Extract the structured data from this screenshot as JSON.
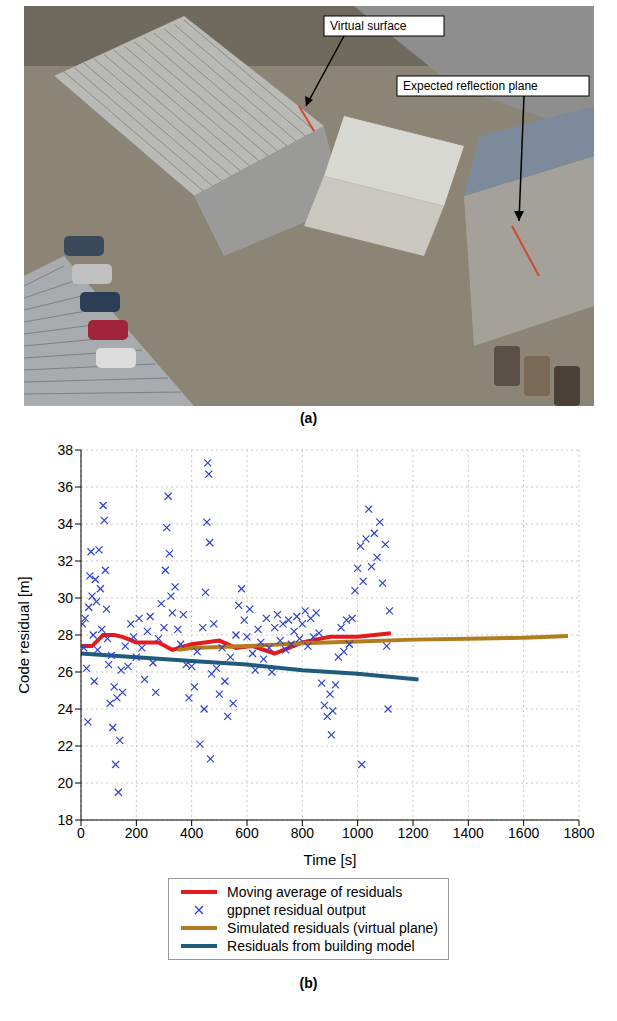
{
  "image_panel": {
    "label": "(a)",
    "annotations": [
      "Virtual surface",
      "Expected reflection plane"
    ]
  },
  "chart_data": {
    "type": "scatter",
    "label": "(b)",
    "x_label": "Time [s]",
    "y_label": "Code residual [m]",
    "xlim": [
      0,
      1800
    ],
    "xticks": [
      0,
      200,
      400,
      600,
      800,
      1000,
      1200,
      1400,
      1600,
      1800
    ],
    "ylim": [
      18,
      38
    ],
    "yticks": [
      18,
      20,
      22,
      24,
      26,
      28,
      30,
      32,
      34,
      36,
      38
    ],
    "grid": true,
    "legend": "bottom",
    "series": [
      {
        "name": "Moving average of residuals",
        "type": "line",
        "color": "#e41a1c",
        "line_style": "solid",
        "x": [
          0,
          40,
          80,
          120,
          150,
          200,
          280,
          330,
          400,
          500,
          560,
          620,
          700,
          800,
          900,
          1000,
          1120
        ],
        "values": [
          27.4,
          27.4,
          28.0,
          28.0,
          27.9,
          27.6,
          27.6,
          27.2,
          27.5,
          27.7,
          27.3,
          27.4,
          27.0,
          27.6,
          27.9,
          27.9,
          28.1
        ]
      },
      {
        "name": "gppnet residual output",
        "type": "scatter",
        "color": "#2b3fd6",
        "marker": "x",
        "x": [
          5,
          10,
          15,
          20,
          25,
          28,
          32,
          36,
          40,
          44,
          48,
          52,
          56,
          60,
          65,
          70,
          75,
          80,
          84,
          88,
          92,
          96,
          100,
          105,
          110,
          115,
          120,
          125,
          130,
          135,
          140,
          145,
          150,
          160,
          170,
          180,
          190,
          200,
          210,
          220,
          230,
          240,
          250,
          260,
          270,
          280,
          290,
          300,
          305,
          310,
          315,
          320,
          325,
          330,
          340,
          350,
          360,
          370,
          380,
          390,
          400,
          410,
          420,
          430,
          440,
          445,
          450,
          455,
          458,
          462,
          465,
          468,
          472,
          480,
          490,
          500,
          510,
          520,
          530,
          540,
          550,
          560,
          570,
          580,
          590,
          600,
          610,
          620,
          630,
          640,
          650,
          660,
          670,
          680,
          690,
          700,
          710,
          720,
          730,
          740,
          750,
          760,
          770,
          780,
          790,
          800,
          810,
          820,
          830,
          840,
          850,
          860,
          870,
          880,
          890,
          900,
          905,
          910,
          920,
          930,
          940,
          950,
          960,
          970,
          980,
          990,
          1000,
          1010,
          1015,
          1020,
          1030,
          1040,
          1050,
          1060,
          1070,
          1080,
          1090,
          1100,
          1105,
          1110,
          1115
        ],
        "values": [
          28.6,
          27.3,
          28.9,
          26.2,
          23.3,
          29.5,
          31.2,
          32.5,
          30.1,
          28.0,
          25.5,
          31.0,
          29.8,
          27.2,
          32.6,
          30.5,
          28.3,
          35.0,
          34.2,
          31.5,
          29.4,
          27.8,
          26.4,
          24.3,
          26.9,
          23.0,
          25.2,
          21.0,
          24.6,
          19.5,
          22.3,
          26.1,
          24.9,
          27.4,
          26.3,
          28.6,
          27.9,
          26.8,
          28.9,
          27.3,
          25.6,
          28.2,
          29.0,
          26.5,
          24.9,
          27.8,
          29.7,
          28.4,
          31.5,
          33.8,
          35.5,
          32.4,
          30.1,
          29.2,
          30.6,
          28.3,
          27.5,
          29.1,
          26.4,
          24.6,
          26.3,
          25.2,
          27.1,
          22.1,
          28.4,
          24.0,
          30.3,
          34.1,
          37.3,
          36.7,
          33.0,
          21.3,
          25.9,
          28.6,
          26.2,
          24.8,
          27.3,
          25.5,
          23.6,
          26.8,
          24.3,
          28.0,
          29.6,
          30.5,
          28.8,
          27.9,
          29.4,
          27.0,
          26.1,
          28.3,
          27.6,
          26.7,
          28.9,
          27.3,
          26.0,
          28.4,
          29.1,
          27.7,
          28.6,
          27.2,
          28.8,
          27.5,
          28.2,
          29.0,
          27.8,
          28.6,
          29.3,
          27.4,
          28.9,
          27.9,
          29.2,
          28.1,
          25.4,
          24.2,
          23.6,
          24.8,
          22.6,
          23.9,
          25.3,
          26.8,
          28.4,
          27.1,
          28.8,
          27.5,
          28.9,
          30.4,
          31.6,
          32.8,
          21.0,
          30.9,
          33.2,
          34.8,
          31.7,
          33.5,
          32.2,
          34.1,
          30.8,
          32.9,
          27.4,
          24.0,
          29.3
        ]
      },
      {
        "name": "Simulated residuals (virtual plane)",
        "type": "line",
        "color": "#b27b1f",
        "line_style": "solid",
        "x": [
          350,
          400,
          600,
          800,
          1000,
          1200,
          1400,
          1600,
          1760
        ],
        "values": [
          27.2,
          27.3,
          27.4,
          27.55,
          27.65,
          27.75,
          27.8,
          27.85,
          27.95
        ]
      },
      {
        "name": "Residuals from building model",
        "type": "line",
        "color": "#1f5b7a",
        "line_style": "solid",
        "x": [
          0,
          200,
          400,
          600,
          800,
          1000,
          1220
        ],
        "values": [
          27.0,
          26.8,
          26.6,
          26.4,
          26.1,
          25.9,
          25.6
        ]
      }
    ]
  }
}
